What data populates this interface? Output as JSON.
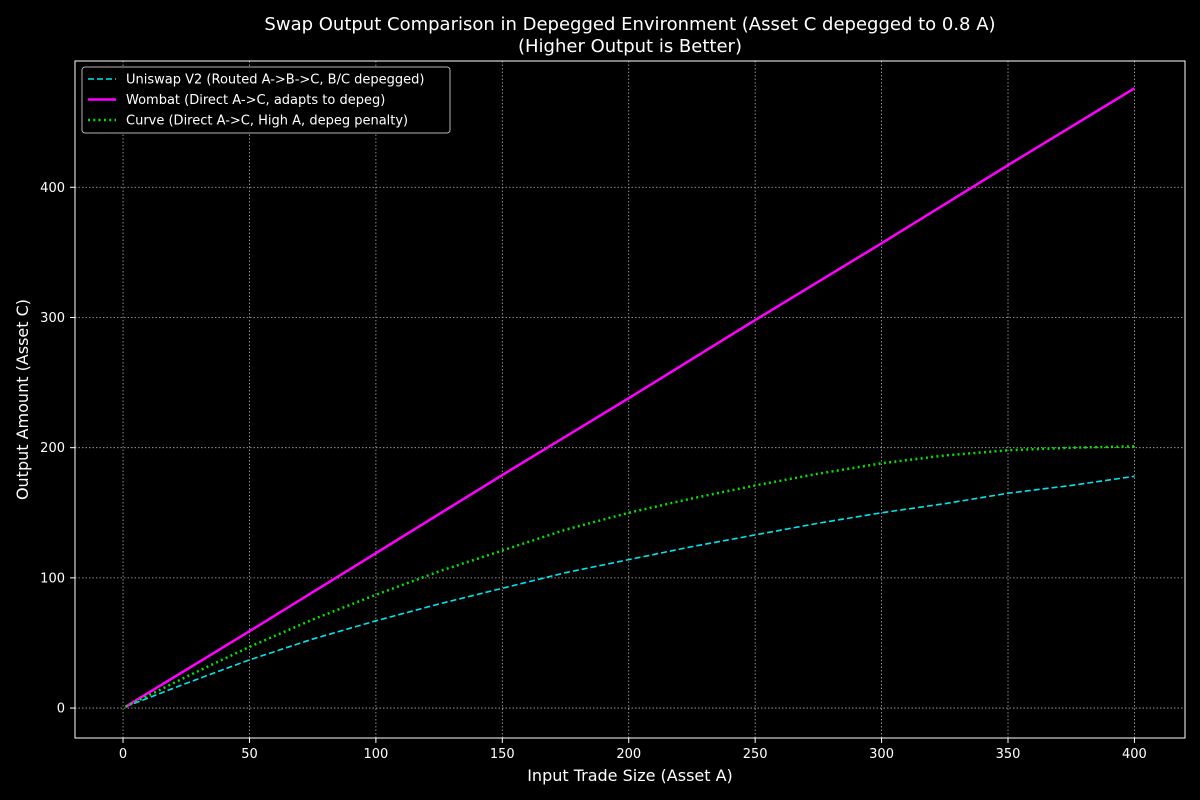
{
  "chart_data": {
    "type": "line",
    "title": "Swap Output Comparison in Depegged Environment (Asset C depegged to 0.8 A)",
    "subtitle": "(Higher Output is Better)",
    "xlabel": "Input Trade Size (Asset A)",
    "ylabel": "Output Amount (Asset C)",
    "xlim": [
      -19,
      420
    ],
    "ylim": [
      -23,
      497
    ],
    "xticks": [
      0,
      50,
      100,
      150,
      200,
      250,
      300,
      350,
      400
    ],
    "yticks": [
      0,
      100,
      200,
      300,
      400
    ],
    "grid": true,
    "legend_position": "top-left",
    "series": [
      {
        "name": "Uniswap V2 (Routed A->B->C, B/C depegged)",
        "color": "#00e5ee",
        "style": "dashed",
        "x": [
          1,
          25,
          50,
          75,
          100,
          125,
          150,
          175,
          200,
          225,
          250,
          275,
          300,
          325,
          350,
          375,
          400
        ],
        "values": [
          1,
          19,
          37,
          53,
          67,
          80,
          92,
          104,
          114,
          124,
          133,
          142,
          150,
          157,
          165,
          171,
          178
        ]
      },
      {
        "name": "Wombat (Direct A->C, adapts to depeg)",
        "color": "#ff00ff",
        "style": "solid",
        "x": [
          1,
          50,
          100,
          150,
          200,
          250,
          300,
          350,
          400
        ],
        "values": [
          1,
          59,
          119,
          179,
          238,
          298,
          357,
          417,
          476
        ]
      },
      {
        "name": "Curve (Direct A->C, High A, depeg penalty)",
        "color": "#00e600",
        "style": "dotted",
        "x": [
          1,
          25,
          50,
          75,
          100,
          125,
          150,
          175,
          200,
          225,
          250,
          275,
          300,
          325,
          350,
          375,
          400
        ],
        "values": [
          1,
          24,
          47,
          68,
          87,
          105,
          121,
          137,
          150,
          161,
          171,
          180,
          188,
          194,
          198,
          200,
          201
        ]
      }
    ]
  }
}
